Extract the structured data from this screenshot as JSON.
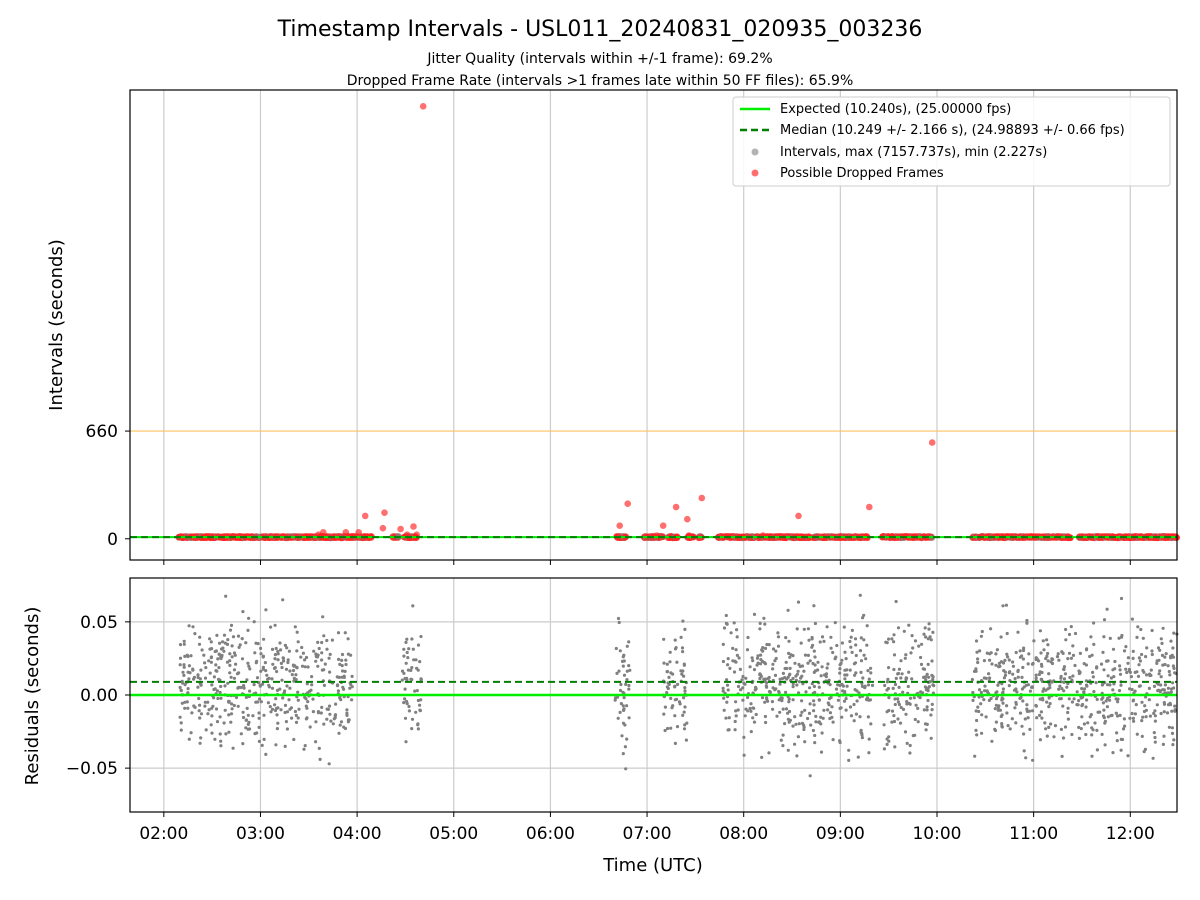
{
  "title": "Timestamp Intervals - USL011_20240831_020935_003236",
  "subtitle_lines": [
    "Jitter Quality (intervals within +/-1 frame): 69.2%",
    "Dropped Frame Rate (intervals >1 frames late within 50 FF files): 65.9%"
  ],
  "colors": {
    "expected": "#00ee00",
    "median": "#007f00",
    "interval_points": "#808080",
    "dropped_points": "#ff2222",
    "threshold_line": "#ffc060",
    "grid": "#cccccc"
  },
  "chart_data": [
    {
      "type": "scatter",
      "id": "intervals",
      "ylabel": "Intervals (seconds)",
      "x_axis": {
        "kind": "time",
        "range": [
          "01:39",
          "12:29"
        ],
        "tick_labels": [
          "02:00",
          "03:00",
          "04:00",
          "05:00",
          "06:00",
          "07:00",
          "08:00",
          "09:00",
          "10:00",
          "11:00",
          "12:00"
        ]
      },
      "y_axis": {
        "range": [
          -130,
          2750
        ],
        "ticks": [
          0,
          660
        ],
        "tick_labels": [
          "0",
          "660"
        ]
      },
      "grid": "vertical",
      "legend_position": "top-right",
      "legend": [
        {
          "kind": "line",
          "label": "Expected (10.240s), (25.00000 fps)"
        },
        {
          "kind": "dashed-line",
          "label": "Median (10.249 +/- 2.166 s), (24.98893 +/- 0.66 fps)"
        },
        {
          "kind": "marker-gray",
          "label": "Intervals, max (7157.737s), min (2.227s)"
        },
        {
          "kind": "marker-red",
          "label": "Possible Dropped Frames"
        }
      ],
      "reference_lines": {
        "expected": 10.24,
        "median": 10.249,
        "threshold": 660
      },
      "observation_segments": [
        [
          "02:09",
          "02:25"
        ],
        [
          "02:25",
          "03:57"
        ],
        [
          "03:57",
          "04:09"
        ],
        [
          "04:22",
          "04:26"
        ],
        [
          "04:29",
          "04:37"
        ],
        [
          "06:41",
          "06:47"
        ],
        [
          "06:58",
          "07:10"
        ],
        [
          "07:13",
          "07:19"
        ],
        [
          "07:25",
          "07:29"
        ],
        [
          "07:32",
          "07:34"
        ],
        [
          "07:44",
          "08:41"
        ],
        [
          "08:43",
          "09:17"
        ],
        [
          "09:26",
          "09:38"
        ],
        [
          "09:38",
          "09:57"
        ],
        [
          "10:22",
          "10:44"
        ],
        [
          "10:44",
          "11:23"
        ],
        [
          "11:28",
          "12:29"
        ]
      ],
      "dropped_outliers": [
        {
          "time": "04:41",
          "value": 2650
        },
        {
          "time": "04:05",
          "value": 140
        },
        {
          "time": "04:16",
          "value": 65
        },
        {
          "time": "04:17",
          "value": 160
        },
        {
          "time": "04:27",
          "value": 60
        },
        {
          "time": "04:31",
          "value": 25
        },
        {
          "time": "04:35",
          "value": 75
        },
        {
          "time": "04:37",
          "value": 25
        },
        {
          "time": "03:36",
          "value": 25
        },
        {
          "time": "03:39",
          "value": 40
        },
        {
          "time": "03:53",
          "value": 40
        },
        {
          "time": "04:01",
          "value": 40
        },
        {
          "time": "06:43",
          "value": 80
        },
        {
          "time": "06:48",
          "value": 215
        },
        {
          "time": "07:06",
          "value": 20
        },
        {
          "time": "07:10",
          "value": 80
        },
        {
          "time": "07:18",
          "value": 195
        },
        {
          "time": "07:25",
          "value": 120
        },
        {
          "time": "07:26",
          "value": 20
        },
        {
          "time": "07:34",
          "value": 250
        },
        {
          "time": "08:12",
          "value": 20
        },
        {
          "time": "08:34",
          "value": 140
        },
        {
          "time": "09:18",
          "value": 195
        },
        {
          "time": "09:57",
          "value": 590
        }
      ]
    },
    {
      "type": "scatter",
      "id": "residuals",
      "ylabel": "Residuals (seconds)",
      "xlabel": "Time (UTC)",
      "x_axis": {
        "kind": "time",
        "range": [
          "01:39",
          "12:29"
        ],
        "tick_labels": [
          "02:00",
          "03:00",
          "04:00",
          "05:00",
          "06:00",
          "07:00",
          "08:00",
          "09:00",
          "10:00",
          "11:00",
          "12:00"
        ]
      },
      "y_axis": {
        "range": [
          -0.08,
          0.08
        ],
        "ticks": [
          0.05,
          0.0,
          -0.05
        ],
        "tick_labels": [
          "0.05",
          "0.00",
          "−0.05"
        ]
      },
      "grid": "both",
      "reference_lines": {
        "expected": 0.0,
        "median": 0.009
      },
      "observation_segments": [
        [
          "02:10",
          "03:57"
        ],
        [
          "04:28",
          "04:40"
        ],
        [
          "06:40",
          "06:50"
        ],
        [
          "07:10",
          "07:25"
        ],
        [
          "07:47",
          "08:45"
        ],
        [
          "08:43",
          "09:20"
        ],
        [
          "09:27",
          "09:58"
        ],
        [
          "10:22",
          "12:29"
        ]
      ]
    }
  ]
}
